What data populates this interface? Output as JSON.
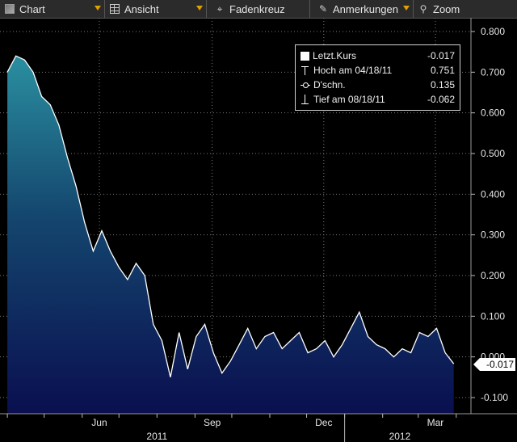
{
  "toolbar": {
    "chart_label": "Chart",
    "view_label": "Ansicht",
    "crosshair_label": "Fadenkreuz",
    "annotations_label": "Anmerkungen",
    "zoom_label": "Zoom"
  },
  "legend": {
    "last": {
      "label": "Letzt.Kurs",
      "value": "-0.017"
    },
    "high": {
      "label": "Hoch am 04/18/11",
      "value": "0.751"
    },
    "avg": {
      "label": "D'schn.",
      "value": "0.135"
    },
    "low": {
      "label": "Tief am 08/18/11",
      "value": "-0.062"
    }
  },
  "last_value_badge": "-0.017",
  "colors": {
    "background": "#000000",
    "grid": "#7a7a7a",
    "line": "#ffffff",
    "area_top": "#2a8fa0",
    "area_bottom": "#0a0f50"
  },
  "chart_data": {
    "type": "area",
    "ylim": [
      -0.12,
      0.81
    ],
    "yticks": [
      "0.800",
      "0.700",
      "0.600",
      "0.500",
      "0.400",
      "0.300",
      "0.200",
      "0.100",
      "0.000",
      "-0.100"
    ],
    "xticks": [
      "Jun",
      "Sep",
      "Dec",
      "Mar"
    ],
    "year_labels": [
      "2011",
      "2012"
    ],
    "x": [
      "2011-04-01",
      "2011-04-08",
      "2011-04-15",
      "2011-04-22",
      "2011-04-29",
      "2011-05-06",
      "2011-05-13",
      "2011-05-20",
      "2011-05-27",
      "2011-06-03",
      "2011-06-10",
      "2011-06-17",
      "2011-06-24",
      "2011-07-01",
      "2011-07-08",
      "2011-07-15",
      "2011-07-22",
      "2011-07-29",
      "2011-08-05",
      "2011-08-12",
      "2011-08-19",
      "2011-08-26",
      "2011-09-02",
      "2011-09-09",
      "2011-09-16",
      "2011-09-23",
      "2011-09-30",
      "2011-10-07",
      "2011-10-14",
      "2011-10-21",
      "2011-10-28",
      "2011-11-04",
      "2011-11-11",
      "2011-11-18",
      "2011-11-25",
      "2011-12-02",
      "2011-12-09",
      "2011-12-16",
      "2011-12-23",
      "2011-12-30",
      "2012-01-06",
      "2012-01-13",
      "2012-01-20",
      "2012-01-27",
      "2012-02-03",
      "2012-02-10",
      "2012-02-17",
      "2012-02-24",
      "2012-03-02",
      "2012-03-09",
      "2012-03-16",
      "2012-03-23",
      "2012-03-30"
    ],
    "y": [
      0.7,
      0.74,
      0.73,
      0.7,
      0.64,
      0.62,
      0.57,
      0.49,
      0.42,
      0.33,
      0.26,
      0.31,
      0.26,
      0.22,
      0.19,
      0.23,
      0.2,
      0.08,
      0.04,
      -0.05,
      0.06,
      -0.03,
      0.05,
      0.08,
      0.01,
      -0.04,
      -0.01,
      0.03,
      0.07,
      0.02,
      0.05,
      0.06,
      0.02,
      0.04,
      0.06,
      0.01,
      0.02,
      0.04,
      0.0,
      0.03,
      0.07,
      0.11,
      0.05,
      0.03,
      0.02,
      0.0,
      0.02,
      0.01,
      0.06,
      0.05,
      0.07,
      0.01,
      -0.017
    ]
  }
}
